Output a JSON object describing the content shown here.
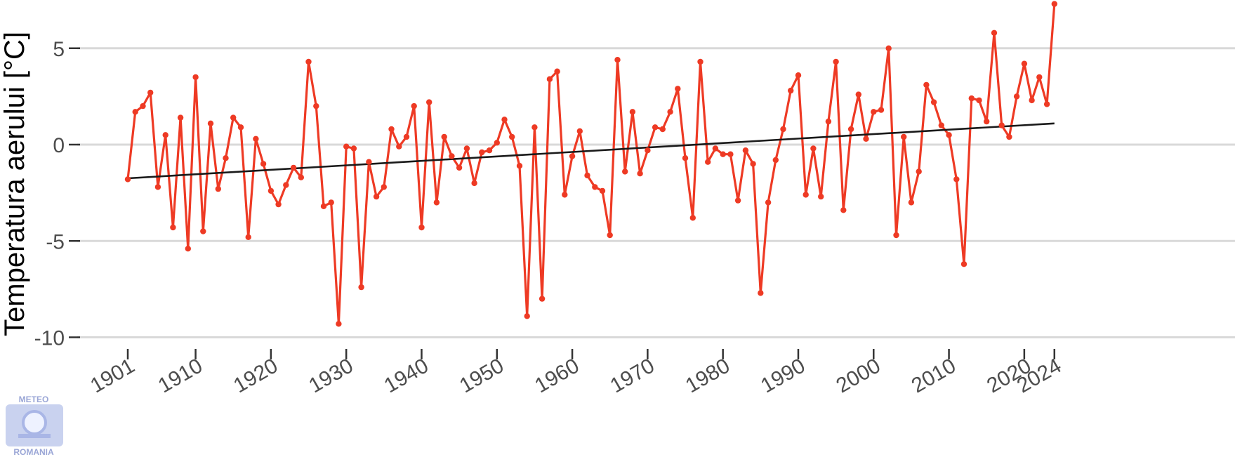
{
  "chart_data": {
    "type": "line",
    "title": "",
    "xlabel": "",
    "ylabel": "Temperatura aerului [°C]",
    "xlim": [
      1896,
      2027
    ],
    "ylim": [
      -10.4,
      7.3
    ],
    "yticks": [
      5,
      0,
      -5,
      -10
    ],
    "ytick_labels": [
      "5",
      "0",
      "-5",
      "-10"
    ],
    "xticks": [
      1901,
      1910,
      1920,
      1930,
      1940,
      1950,
      1960,
      1970,
      1980,
      1990,
      2000,
      2010,
      2020,
      2024
    ],
    "xtick_labels": [
      "1901",
      "1910",
      "1920",
      "1930",
      "1940",
      "1950",
      "1960",
      "1970",
      "1980",
      "1990",
      "2000",
      "2010",
      "2020",
      "2024"
    ],
    "grid": "horizontal",
    "series": [
      {
        "color": "#ee3a24",
        "marker": "circle",
        "x": [
          1901,
          1902,
          1903,
          1904,
          1905,
          1906,
          1907,
          1908,
          1909,
          1910,
          1911,
          1912,
          1913,
          1914,
          1915,
          1916,
          1917,
          1918,
          1919,
          1920,
          1921,
          1922,
          1923,
          1924,
          1925,
          1926,
          1927,
          1928,
          1929,
          1930,
          1931,
          1932,
          1933,
          1934,
          1935,
          1936,
          1937,
          1938,
          1939,
          1940,
          1941,
          1942,
          1943,
          1944,
          1945,
          1946,
          1947,
          1948,
          1949,
          1950,
          1951,
          1952,
          1953,
          1954,
          1955,
          1956,
          1957,
          1958,
          1959,
          1960,
          1961,
          1962,
          1963,
          1964,
          1965,
          1966,
          1967,
          1968,
          1969,
          1970,
          1971,
          1972,
          1973,
          1974,
          1975,
          1976,
          1977,
          1978,
          1979,
          1980,
          1981,
          1982,
          1983,
          1984,
          1985,
          1986,
          1987,
          1988,
          1989,
          1990,
          1991,
          1992,
          1993,
          1994,
          1995,
          1996,
          1997,
          1998,
          1999,
          2000,
          2001,
          2002,
          2003,
          2004,
          2005,
          2006,
          2007,
          2008,
          2009,
          2010,
          2011,
          2012,
          2013,
          2014,
          2015,
          2016,
          2017,
          2018,
          2019,
          2020,
          2021,
          2022,
          2023,
          2024
        ],
        "values": [
          -1.8,
          1.7,
          2.0,
          2.7,
          -2.2,
          0.5,
          -4.3,
          1.4,
          -5.4,
          3.5,
          -4.5,
          1.1,
          -2.3,
          -0.7,
          1.4,
          0.9,
          -4.8,
          0.3,
          -1.0,
          -2.4,
          -3.1,
          -2.1,
          -1.2,
          -1.7,
          4.3,
          2.0,
          -3.2,
          -3.0,
          -9.3,
          -0.1,
          -0.2,
          -7.4,
          -0.9,
          -2.7,
          -2.2,
          0.8,
          -0.1,
          0.4,
          2.0,
          -4.3,
          2.2,
          -3.0,
          0.4,
          -0.6,
          -1.2,
          -0.2,
          -2.0,
          -0.4,
          -0.3,
          0.1,
          1.3,
          0.4,
          -1.1,
          -8.9,
          0.9,
          -8.0,
          3.4,
          3.8,
          -2.6,
          -0.6,
          0.7,
          -1.6,
          -2.2,
          -2.4,
          -4.7,
          4.4,
          -1.4,
          1.7,
          -1.5,
          -0.3,
          0.9,
          0.8,
          1.7,
          2.9,
          -0.7,
          -3.8,
          4.3,
          -0.9,
          -0.2,
          -0.5,
          -0.5,
          -2.9,
          -0.3,
          -1.0,
          -7.7,
          -3.0,
          -0.8,
          0.8,
          2.8,
          3.6,
          -2.6,
          -0.2,
          -2.7,
          1.2,
          4.3,
          -3.4,
          0.8,
          2.6,
          0.3,
          1.7,
          1.8,
          5.0,
          -4.7,
          0.4,
          -3.0,
          -1.4,
          3.1,
          2.2,
          1.0,
          0.5,
          -1.8,
          -6.2,
          2.4,
          2.3,
          1.2,
          5.8,
          1.0,
          0.4,
          2.5,
          4.2,
          2.3,
          3.5,
          2.1,
          7.3
        ]
      },
      {
        "color": "#1a1a1a",
        "marker": "none",
        "x": [
          1901,
          2024
        ],
        "values": [
          -1.75,
          1.1
        ]
      }
    ]
  },
  "logo": {
    "line1": "METEO",
    "line2": "ROMANIA"
  }
}
